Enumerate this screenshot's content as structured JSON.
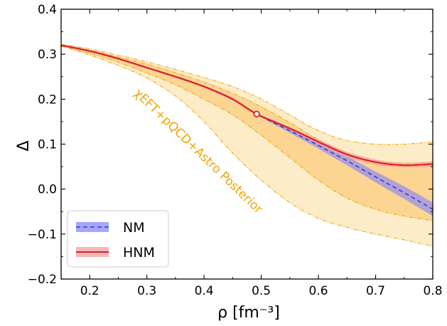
{
  "chart_data": {
    "type": "line",
    "xlabel": "ρ [fm⁻³]",
    "ylabel": "Δ",
    "xlim": [
      0.15,
      0.8
    ],
    "ylim": [
      -0.2,
      0.4
    ],
    "xticks": [
      0.2,
      0.3,
      0.4,
      0.5,
      0.6,
      0.7,
      0.8
    ],
    "xtick_labels": [
      "0.2",
      "0.3",
      "0.4",
      "0.5",
      "0.6",
      "0.7",
      "0.8"
    ],
    "yticks": [
      -0.2,
      -0.1,
      0.0,
      0.1,
      0.2,
      0.3,
      0.4
    ],
    "ytick_labels": [
      "−0.2",
      "−0.1",
      "0.0",
      "0.1",
      "0.2",
      "0.3",
      "0.4"
    ],
    "grid": false,
    "legend_position": "bottom-left",
    "annotation": "χEFT+pQCD+Astro Posterior",
    "transition_point": {
      "x": 0.492,
      "y": 0.167
    },
    "series": [
      {
        "name": "NM",
        "style": "dashed",
        "color": "#3a3ad6",
        "band_color": "#8080ff",
        "x": [
          0.15,
          0.2,
          0.25,
          0.3,
          0.35,
          0.4,
          0.45,
          0.492,
          0.55,
          0.6,
          0.65,
          0.7,
          0.75,
          0.8
        ],
        "y": [
          0.32,
          0.307,
          0.29,
          0.27,
          0.25,
          0.228,
          0.2,
          0.167,
          0.13,
          0.097,
          0.063,
          0.027,
          -0.008,
          -0.045
        ],
        "lower": [
          0.318,
          0.305,
          0.288,
          0.268,
          0.248,
          0.226,
          0.197,
          0.165,
          0.125,
          0.09,
          0.053,
          0.015,
          -0.022,
          -0.06
        ],
        "upper": [
          0.322,
          0.309,
          0.292,
          0.272,
          0.252,
          0.23,
          0.203,
          0.169,
          0.135,
          0.104,
          0.073,
          0.039,
          0.006,
          -0.03
        ]
      },
      {
        "name": "HNM",
        "style": "solid",
        "color": "#e0202a",
        "band_color": "#f5a5a8",
        "x": [
          0.15,
          0.2,
          0.25,
          0.3,
          0.35,
          0.4,
          0.45,
          0.492,
          0.55,
          0.6,
          0.65,
          0.7,
          0.75,
          0.8
        ],
        "y": [
          0.32,
          0.307,
          0.29,
          0.27,
          0.25,
          0.228,
          0.2,
          0.167,
          0.135,
          0.105,
          0.077,
          0.06,
          0.053,
          0.056
        ],
        "lower": [
          0.318,
          0.305,
          0.288,
          0.268,
          0.248,
          0.226,
          0.197,
          0.165,
          0.132,
          0.1,
          0.071,
          0.054,
          0.048,
          0.05
        ],
        "upper": [
          0.322,
          0.309,
          0.292,
          0.272,
          0.252,
          0.23,
          0.203,
          0.169,
          0.138,
          0.11,
          0.083,
          0.066,
          0.058,
          0.062
        ]
      }
    ],
    "posterior_bands": [
      {
        "level": "outer",
        "color": "#fdecc8",
        "x": [
          0.15,
          0.2,
          0.25,
          0.3,
          0.35,
          0.4,
          0.45,
          0.5,
          0.55,
          0.6,
          0.65,
          0.7,
          0.75,
          0.8
        ],
        "lower": [
          0.318,
          0.298,
          0.275,
          0.247,
          0.207,
          0.15,
          0.08,
          0.02,
          -0.03,
          -0.065,
          -0.085,
          -0.1,
          -0.113,
          -0.127
        ],
        "upper": [
          0.322,
          0.312,
          0.298,
          0.283,
          0.266,
          0.248,
          0.228,
          0.2,
          0.165,
          0.13,
          0.108,
          0.1,
          0.1,
          0.105
        ]
      },
      {
        "level": "inner",
        "color": "#fbd591",
        "x": [
          0.15,
          0.2,
          0.25,
          0.3,
          0.35,
          0.4,
          0.45,
          0.5,
          0.55,
          0.6,
          0.65,
          0.7,
          0.75,
          0.8
        ],
        "lower": [
          0.319,
          0.302,
          0.282,
          0.258,
          0.232,
          0.2,
          0.165,
          0.12,
          0.07,
          0.02,
          -0.02,
          -0.045,
          -0.06,
          -0.07
        ],
        "upper": [
          0.321,
          0.309,
          0.294,
          0.278,
          0.259,
          0.238,
          0.213,
          0.183,
          0.148,
          0.11,
          0.08,
          0.063,
          0.058,
          0.06
        ]
      }
    ]
  }
}
